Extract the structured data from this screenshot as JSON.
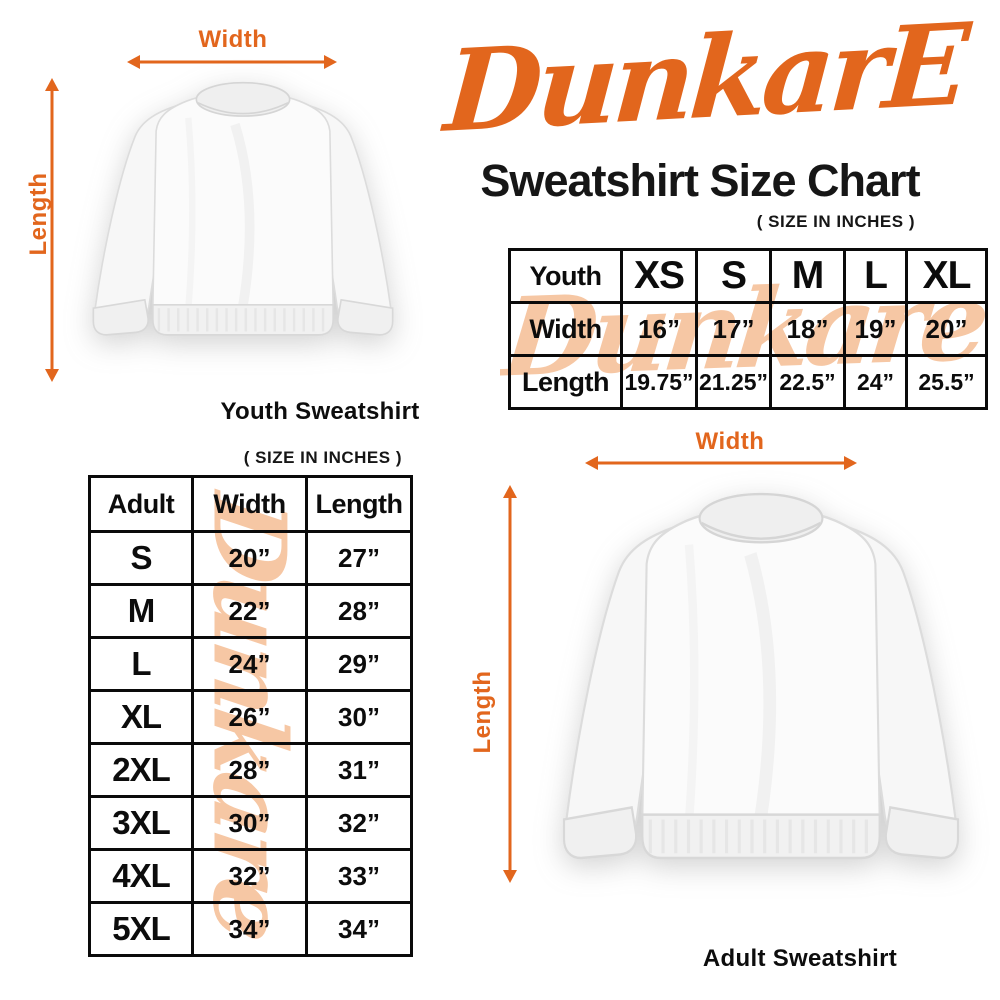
{
  "brand": {
    "logo_text": "DunkarE",
    "watermark_text": "Dunkare",
    "title": "Sweatshirt Size Chart",
    "size_note": "( SIZE IN INCHES )"
  },
  "colors": {
    "accent_orange": "#E2661D",
    "watermark_peach": "#F6C7A4",
    "text_black": "#111111",
    "table_border": "#0A0A0A"
  },
  "youth_diagram": {
    "width_label": "Width",
    "length_label": "Length",
    "caption": "Youth Sweatshirt"
  },
  "adult_diagram": {
    "width_label": "Width",
    "length_label": "Length",
    "caption": "Adult Sweatshirt"
  },
  "youth_table": {
    "header": [
      "Youth",
      "XS",
      "S",
      "M",
      "L",
      "XL"
    ],
    "rows": [
      {
        "label": "Width",
        "values": [
          "16”",
          "17”",
          "18”",
          "19”",
          "20”"
        ]
      },
      {
        "label": "Length",
        "values": [
          "19.75”",
          "21.25”",
          "22.5”",
          "24”",
          "25.5”"
        ]
      }
    ]
  },
  "adult_table": {
    "size_note": "( SIZE IN INCHES )",
    "header": [
      "Adult",
      "Width",
      "Length"
    ],
    "rows": [
      {
        "size": "S",
        "width": "20”",
        "length": "27”"
      },
      {
        "size": "M",
        "width": "22”",
        "length": "28”"
      },
      {
        "size": "L",
        "width": "24”",
        "length": "29”"
      },
      {
        "size": "XL",
        "width": "26”",
        "length": "30”"
      },
      {
        "size": "2XL",
        "width": "28”",
        "length": "31”"
      },
      {
        "size": "3XL",
        "width": "30”",
        "length": "32”"
      },
      {
        "size": "4XL",
        "width": "32”",
        "length": "33”"
      },
      {
        "size": "5XL",
        "width": "34”",
        "length": "34”"
      }
    ]
  }
}
